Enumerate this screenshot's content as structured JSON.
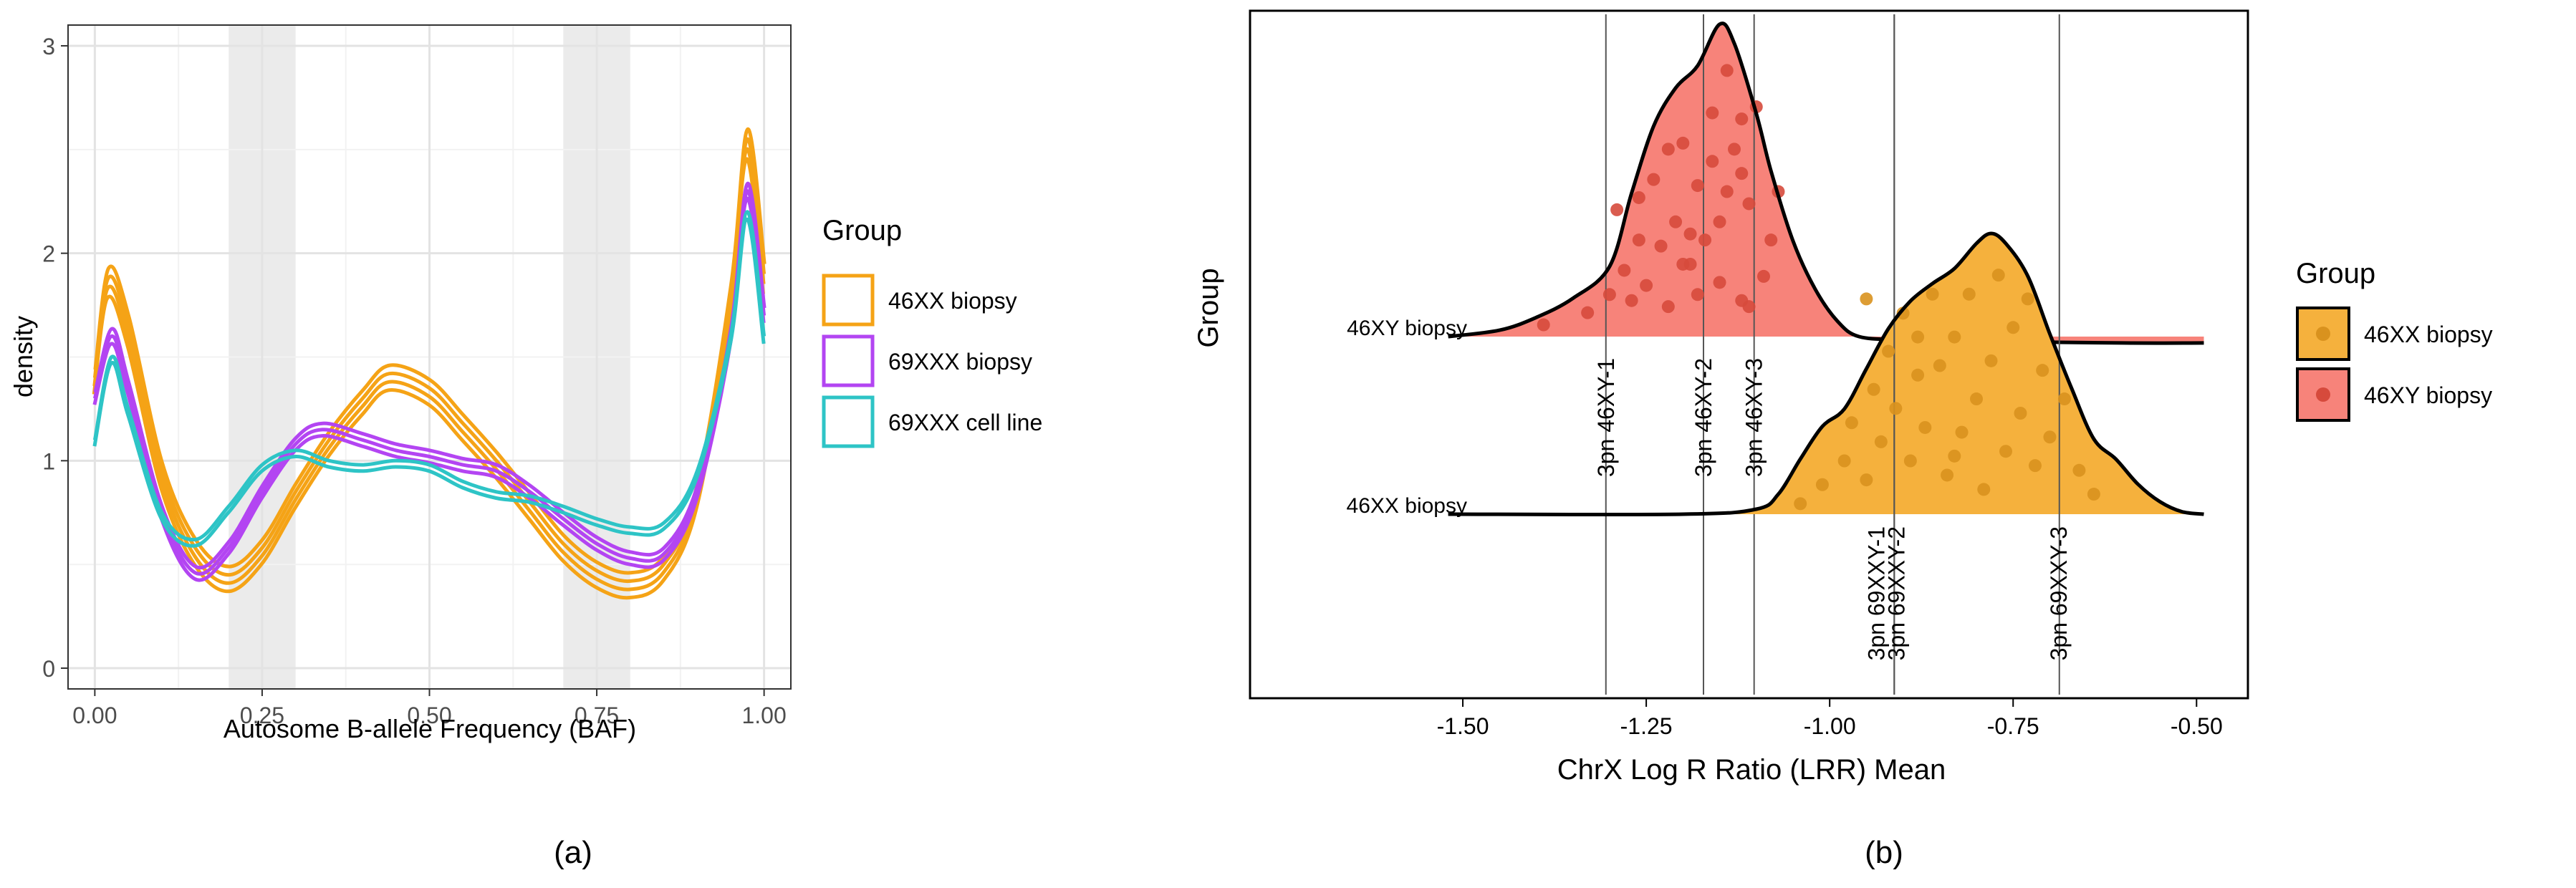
{
  "chart_data": [
    {
      "type": "line",
      "panel_label": "(a)",
      "title": "",
      "xlabel": "Autosome B-allele Frequency (BAF)",
      "ylabel": "density",
      "xlim": [
        -0.04,
        1.04
      ],
      "ylim": [
        -0.1,
        3.1
      ],
      "xticks": [
        0.0,
        0.25,
        0.5,
        0.75,
        1.0
      ],
      "xtick_labels": [
        "0.00",
        "0.25",
        "0.50",
        "0.75",
        "1.00"
      ],
      "yticks": [
        0,
        1,
        2,
        3
      ],
      "ytick_labels": [
        "0",
        "1",
        "2",
        "3"
      ],
      "grid": true,
      "shaded_bands": [
        [
          0.2,
          0.3
        ],
        [
          0.7,
          0.8
        ]
      ],
      "band_color": "#ebebeb",
      "legend": {
        "title": "Group",
        "placement": "right",
        "entries": [
          {
            "label": "46XX biopsy",
            "color": "#f5a316"
          },
          {
            "label": "69XXX biopsy",
            "color": "#b345f2"
          },
          {
            "label": "69XXX cell line",
            "color": "#2ec4c6"
          }
        ]
      },
      "series": [
        {
          "name": "46XX biopsy",
          "color": "#f5a316",
          "x": [
            0.0,
            0.02,
            0.05,
            0.1,
            0.15,
            0.2,
            0.25,
            0.3,
            0.35,
            0.4,
            0.44,
            0.5,
            0.55,
            0.6,
            0.65,
            0.7,
            0.75,
            0.8,
            0.85,
            0.9,
            0.95,
            0.975,
            1.0
          ],
          "y": [
            1.4,
            1.88,
            1.65,
            0.95,
            0.58,
            0.45,
            0.58,
            0.85,
            1.1,
            1.3,
            1.42,
            1.35,
            1.18,
            1.0,
            0.8,
            0.6,
            0.47,
            0.42,
            0.5,
            0.85,
            1.8,
            2.55,
            1.9
          ],
          "replicate_offsets": [
            0.0,
            -0.04,
            0.04,
            -0.08
          ]
        },
        {
          "name": "69XXX biopsy",
          "color": "#b345f2",
          "x": [
            0.0,
            0.025,
            0.05,
            0.1,
            0.15,
            0.2,
            0.25,
            0.3,
            0.34,
            0.4,
            0.45,
            0.5,
            0.55,
            0.6,
            0.65,
            0.7,
            0.75,
            0.8,
            0.85,
            0.9,
            0.95,
            0.975,
            1.0
          ],
          "y": [
            1.3,
            1.6,
            1.35,
            0.75,
            0.46,
            0.58,
            0.85,
            1.08,
            1.15,
            1.1,
            1.05,
            1.02,
            0.98,
            0.95,
            0.85,
            0.72,
            0.6,
            0.53,
            0.55,
            0.85,
            1.6,
            2.3,
            1.7
          ],
          "replicate_offsets": [
            0.0,
            -0.03,
            0.03
          ]
        },
        {
          "name": "69XXX cell line",
          "color": "#2ec4c6",
          "x": [
            0.0,
            0.025,
            0.05,
            0.1,
            0.15,
            0.2,
            0.25,
            0.3,
            0.35,
            0.4,
            0.45,
            0.5,
            0.55,
            0.6,
            0.65,
            0.7,
            0.75,
            0.8,
            0.85,
            0.9,
            0.95,
            0.975,
            1.0
          ],
          "y": [
            1.1,
            1.5,
            1.25,
            0.75,
            0.62,
            0.78,
            0.98,
            1.05,
            1.0,
            0.98,
            1.0,
            0.98,
            0.9,
            0.85,
            0.83,
            0.78,
            0.72,
            0.68,
            0.7,
            0.95,
            1.6,
            2.2,
            1.6
          ],
          "replicate_offsets": [
            0.0,
            -0.03
          ]
        }
      ]
    },
    {
      "type": "area",
      "subtype": "ridgeline",
      "panel_label": "(b)",
      "title": "",
      "xlabel": "ChrX Log R Ratio (LRR) Mean",
      "ylabel": "Group",
      "xlim": [
        -1.79,
        -0.43
      ],
      "xticks": [
        -1.5,
        -1.25,
        -1.0,
        -0.75,
        -0.5
      ],
      "xtick_labels": [
        "-1.50",
        "-1.25",
        "-1.00",
        "-0.75",
        "-0.50"
      ],
      "categories": [
        "46XY biopsy",
        "46XX biopsy"
      ],
      "legend": {
        "title": "Group",
        "placement": "right",
        "entries": [
          {
            "label": "46XX biopsy",
            "color": "#f5b13d"
          },
          {
            "label": "46XY biopsy",
            "color": "#f7837a"
          }
        ]
      },
      "point_color": "#d64a3c",
      "point_color_xx": "#d9921e",
      "series": [
        {
          "name": "46XY biopsy",
          "color": "#f7837a",
          "x": [
            -1.52,
            -1.45,
            -1.4,
            -1.35,
            -1.3,
            -1.27,
            -1.24,
            -1.21,
            -1.18,
            -1.15,
            -1.13,
            -1.1,
            -1.08,
            -1.05,
            -1.02,
            -0.99,
            -0.96,
            -0.9,
            -0.8,
            -0.6,
            -0.49
          ],
          "density": [
            0.0,
            0.02,
            0.06,
            0.12,
            0.22,
            0.45,
            0.66,
            0.78,
            0.85,
            0.98,
            0.92,
            0.7,
            0.52,
            0.3,
            0.15,
            0.05,
            0.0,
            -0.01,
            -0.015,
            -0.02,
            -0.02
          ],
          "points_x": [
            -1.39,
            -1.33,
            -1.3,
            -1.29,
            -1.28,
            -1.27,
            -1.26,
            -1.26,
            -1.25,
            -1.24,
            -1.23,
            -1.22,
            -1.21,
            -1.2,
            -1.19,
            -1.18,
            -1.18,
            -1.17,
            -1.16,
            -1.16,
            -1.15,
            -1.15,
            -1.14,
            -1.13,
            -1.12,
            -1.12,
            -1.11,
            -1.1,
            -1.09,
            -1.08,
            -1.07,
            -1.22,
            -1.14,
            -1.19,
            -1.11,
            -1.2,
            -1.12
          ],
          "points_y": [
            0.02,
            0.06,
            0.12,
            0.4,
            0.2,
            0.1,
            0.44,
            0.3,
            0.15,
            0.5,
            0.28,
            0.08,
            0.36,
            0.62,
            0.22,
            0.48,
            0.12,
            0.3,
            0.72,
            0.56,
            0.16,
            0.36,
            0.86,
            0.6,
            0.7,
            0.1,
            0.42,
            0.74,
            0.18,
            0.3,
            0.46,
            0.6,
            0.46,
            0.32,
            0.08,
            0.22,
            0.52
          ],
          "quantile_lines": [
            {
              "x": -1.305,
              "label": "3pn 46XY-1"
            },
            {
              "x": -1.172,
              "label": "3pn 46XY-2"
            },
            {
              "x": -1.103,
              "label": "3pn 46XY-3"
            }
          ]
        },
        {
          "name": "46XX biopsy",
          "color": "#f5b13d",
          "x": [
            -1.52,
            -1.2,
            -1.1,
            -1.07,
            -1.04,
            -1.01,
            -0.98,
            -0.95,
            -0.92,
            -0.89,
            -0.86,
            -0.83,
            -0.8,
            -0.78,
            -0.76,
            -0.73,
            -0.7,
            -0.67,
            -0.64,
            -0.61,
            -0.58,
            -0.55,
            -0.52,
            -0.49
          ],
          "density": [
            0.0,
            0.0,
            0.02,
            0.08,
            0.22,
            0.35,
            0.42,
            0.58,
            0.74,
            0.85,
            0.92,
            0.98,
            1.08,
            1.12,
            1.08,
            0.95,
            0.72,
            0.5,
            0.3,
            0.22,
            0.12,
            0.05,
            0.01,
            0.0
          ],
          "points_x": [
            -1.04,
            -1.01,
            -0.98,
            -0.97,
            -0.95,
            -0.94,
            -0.93,
            -0.92,
            -0.91,
            -0.9,
            -0.89,
            -0.88,
            -0.87,
            -0.86,
            -0.85,
            -0.84,
            -0.83,
            -0.82,
            -0.81,
            -0.8,
            -0.79,
            -0.78,
            -0.77,
            -0.76,
            -0.75,
            -0.74,
            -0.73,
            -0.72,
            -0.71,
            -0.7,
            -0.68,
            -0.66,
            -0.64,
            -0.95,
            -0.83,
            -0.88
          ],
          "points_y": [
            0.02,
            0.1,
            0.2,
            0.36,
            0.12,
            0.5,
            0.28,
            0.66,
            0.42,
            0.82,
            0.2,
            0.56,
            0.34,
            0.9,
            0.6,
            0.14,
            0.72,
            0.32,
            0.9,
            0.46,
            0.08,
            0.62,
            0.98,
            0.24,
            0.76,
            0.4,
            0.88,
            0.18,
            0.58,
            0.3,
            0.46,
            0.16,
            0.06,
            0.88,
            0.22,
            0.72
          ],
          "quantile_lines": [
            {
              "x": -0.912,
              "label": "3pn 69XXY-1"
            },
            {
              "x": -0.912,
              "label": "3pn 69XXY-2"
            },
            {
              "x": -0.687,
              "label": "3pn 69XXY-3"
            }
          ]
        }
      ]
    }
  ]
}
